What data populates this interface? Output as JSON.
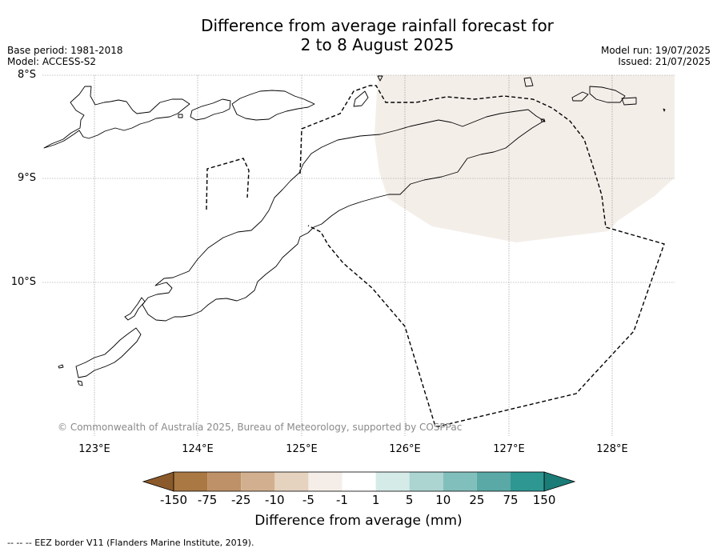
{
  "title_line1": "Difference from average rainfall forecast for",
  "title_line2": "2 to 8 August 2025",
  "base_period": "Base period: 1981-2018",
  "model": "Model: ACCESS-S2",
  "model_run": "Model run: 19/07/2025",
  "issued": "Issued: 21/07/2025",
  "lat_labels": [
    "8°S",
    "9°S",
    "10°S"
  ],
  "lon_labels": [
    "123°E",
    "124°E",
    "125°E",
    "126°E",
    "127°E",
    "128°E"
  ],
  "copyright": "© Commonwealth of Australia 2025, Bureau of Meteorology, supported by COSPPac",
  "colorbar": {
    "label": "Difference from average (mm)",
    "ticks": [
      "-150",
      "-75",
      "-25",
      "-10",
      "-5",
      "-1",
      "1",
      "5",
      "10",
      "25",
      "75",
      "150"
    ],
    "colors": [
      "#8b5a2b",
      "#a97843",
      "#bf9168",
      "#d2b08f",
      "#e5d2bf",
      "#f5ede7",
      "#ffffff",
      "#d5ebe8",
      "#acd5d2",
      "#81bfbc",
      "#5aa9a6",
      "#2e9792",
      "#1b7c77"
    ]
  },
  "footnote": "--  --  -- EEZ border V11 (Flanders Marine Institute, 2019)."
}
